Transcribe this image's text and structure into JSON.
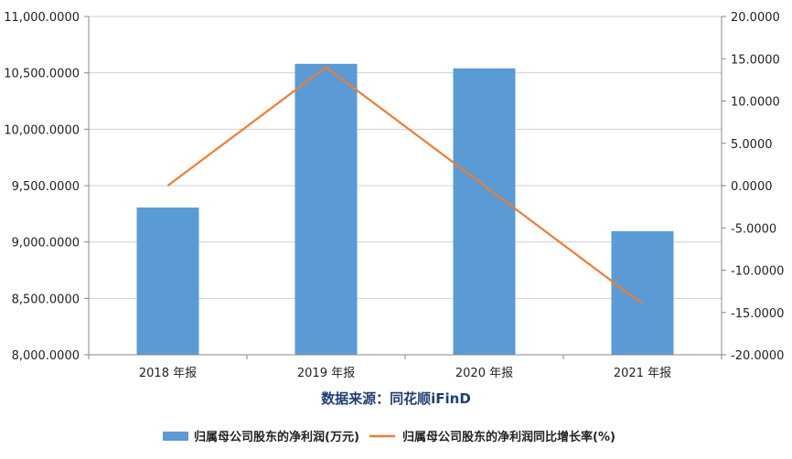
{
  "chart_data": {
    "type": "bar+line",
    "categories": [
      "2018 年报",
      "2019 年报",
      "2020 年报",
      "2021 年报"
    ],
    "series": [
      {
        "name": "归属母公司股东的净利润(万元)",
        "type": "bar",
        "axis": "left",
        "color": "#5b9bd5",
        "values": [
          9306,
          10580,
          10540,
          9096
        ]
      },
      {
        "name": "归属母公司股东的净利润同比增长率(%)",
        "type": "line",
        "axis": "right",
        "color": "#ed7d31",
        "values": [
          0.0,
          14.0,
          0.0,
          -14.0
        ]
      }
    ],
    "y_left": {
      "ylim": [
        8000,
        11000
      ],
      "ticks": [
        8000,
        8500,
        9000,
        9500,
        10000,
        10500,
        11000
      ],
      "tick_labels": [
        "8,000.0000",
        "8,500.0000",
        "9,000.0000",
        "9,500.0000",
        "10,000.0000",
        "10,500.0000",
        "11,000.0000"
      ]
    },
    "y_right": {
      "ylim": [
        -20,
        20
      ],
      "ticks": [
        -20,
        -15,
        -10,
        -5,
        0,
        5,
        10,
        15,
        20
      ],
      "tick_labels": [
        "-20.0000",
        "-15.0000",
        "-10.0000",
        "-5.0000",
        "0.0000",
        "5.0000",
        "10.0000",
        "15.0000",
        "20.0000"
      ]
    },
    "grid": "horizontal",
    "legend_position": "bottom",
    "source": "数据来源：同花顺iFinD"
  }
}
